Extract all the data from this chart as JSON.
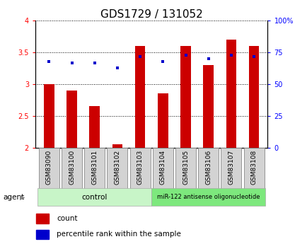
{
  "title": "GDS1729 / 131052",
  "samples": [
    "GSM83090",
    "GSM83100",
    "GSM83101",
    "GSM83102",
    "GSM83103",
    "GSM83104",
    "GSM83105",
    "GSM83106",
    "GSM83107",
    "GSM83108"
  ],
  "counts": [
    3.0,
    2.9,
    2.65,
    2.05,
    3.6,
    2.85,
    3.6,
    3.3,
    3.7,
    3.6
  ],
  "percentiles": [
    68,
    67,
    67,
    63,
    72,
    68,
    73,
    70,
    73,
    72
  ],
  "ylim_left": [
    2.0,
    4.0
  ],
  "ylim_right": [
    0,
    100
  ],
  "yticks_left": [
    2.0,
    2.5,
    3.0,
    3.5,
    4.0
  ],
  "yticks_right": [
    0,
    25,
    50,
    75,
    100
  ],
  "bar_color": "#cc0000",
  "marker_color": "#0000cc",
  "bar_width": 0.45,
  "control_label": "control",
  "treatment_label": "miR-122 antisense oligonucleotide",
  "agent_label": "agent",
  "legend_count_label": "count",
  "legend_pct_label": "percentile rank within the sample",
  "title_fontsize": 11,
  "tick_fontsize": 7,
  "label_fontsize": 6.5,
  "agent_fontsize": 7.5,
  "legend_fontsize": 7.5,
  "label_bg_color": "#d3d3d3",
  "control_bg": "#c8f5c8",
  "treatment_bg": "#7de87d",
  "grid_color": "black"
}
